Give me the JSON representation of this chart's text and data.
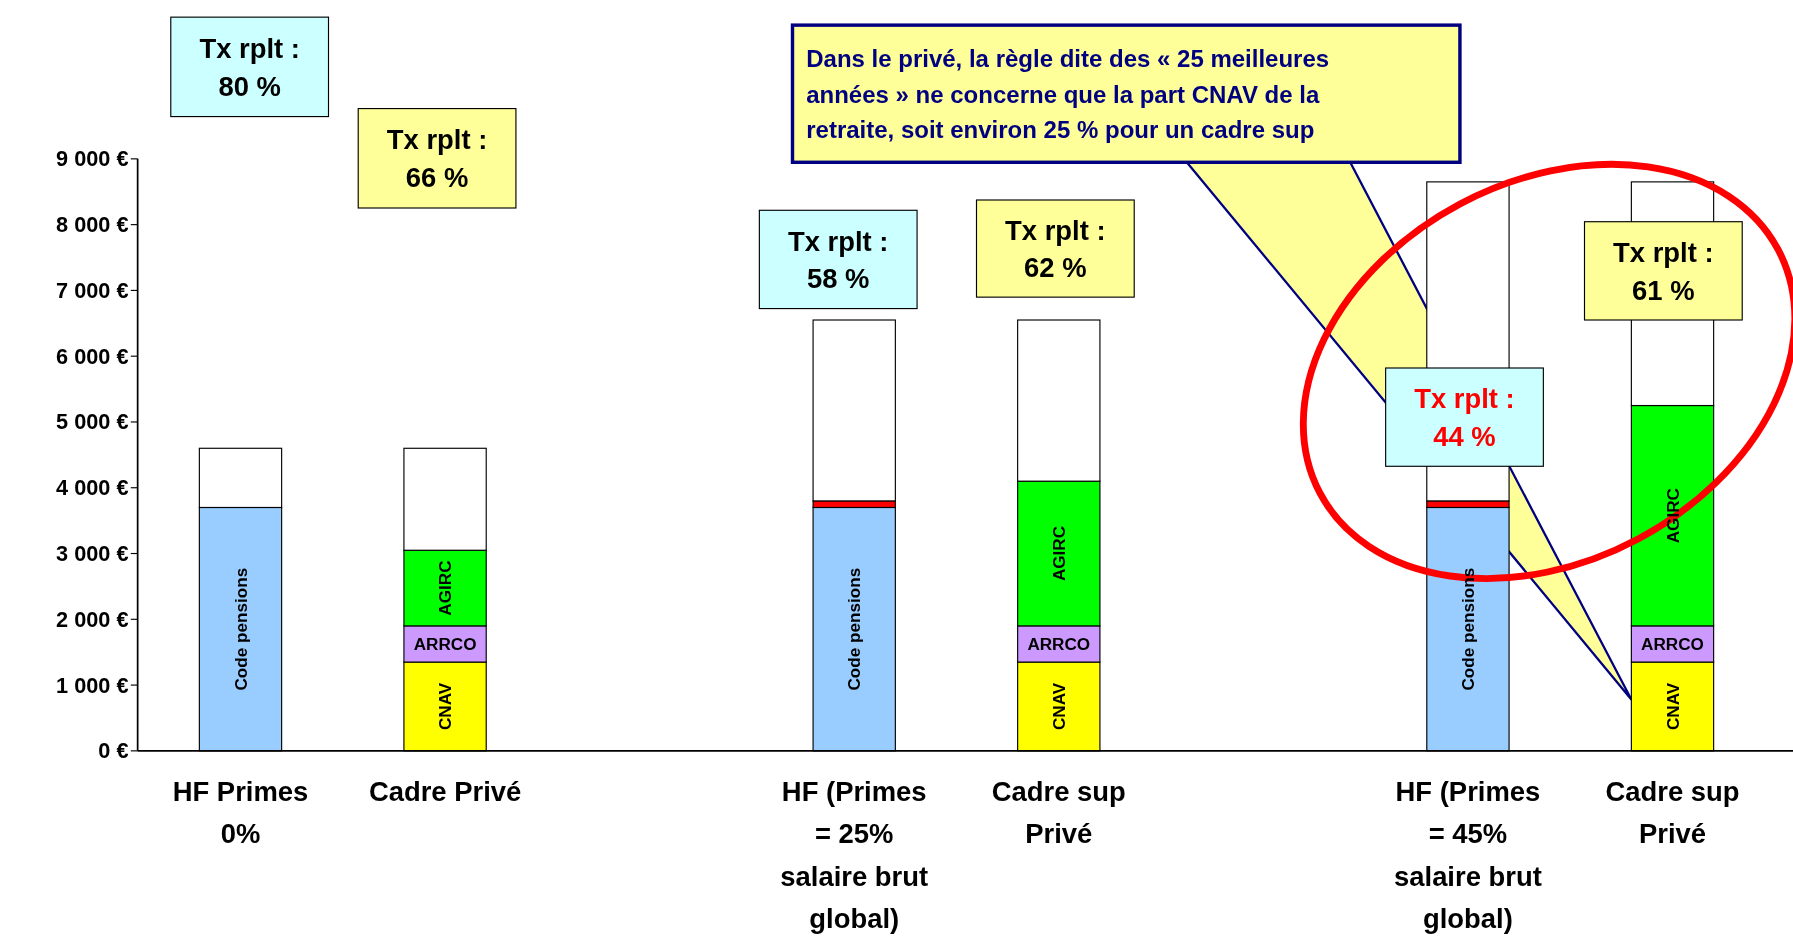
{
  "chart_data": {
    "type": "bar",
    "stacked": true,
    "legend": false,
    "grid": false,
    "categories": [
      "HF Primes\n0%",
      "Cadre Privé",
      null,
      "HF (Primes\n= 25%\nsalaire brut\nglobal)",
      "Cadre sup\nPrivé",
      null,
      "HF (Primes\n= 45%\nsalaire brut\nglobal)",
      "Cadre sup\nPrivé"
    ],
    "series": [
      {
        "name": "Code pensions",
        "color": "#99ccff",
        "values": [
          3700,
          null,
          null,
          3700,
          null,
          null,
          3700,
          null
        ]
      },
      {
        "color": "#ff0000",
        "values": [
          null,
          null,
          null,
          100,
          null,
          null,
          100,
          null
        ]
      },
      {
        "name": "CNAV",
        "color": "#ffff00",
        "values": [
          null,
          1350,
          null,
          null,
          1350,
          null,
          null,
          1350
        ]
      },
      {
        "name": "ARRCO",
        "color": "#cc99ff",
        "values": [
          null,
          550,
          null,
          null,
          550,
          null,
          null,
          550
        ]
      },
      {
        "name": "AGIRC",
        "color": "#00ff00",
        "values": [
          null,
          1150,
          null,
          null,
          2200,
          null,
          null,
          3350
        ]
      },
      {
        "color": "#ffffff",
        "values": [
          900,
          1550,
          null,
          2750,
          2450,
          null,
          4850,
          3400
        ]
      }
    ],
    "ylim": [
      0,
      9000
    ],
    "yticks": [
      {
        "value": 0,
        "label": "0 €"
      },
      {
        "value": 1000,
        "label": "1 000 €"
      },
      {
        "value": 2000,
        "label": "2 000 €"
      },
      {
        "value": 3000,
        "label": "3 000 €"
      },
      {
        "value": 4000,
        "label": "4 000 €"
      },
      {
        "value": 5000,
        "label": "5 000 €"
      },
      {
        "value": 6000,
        "label": "6 000 €"
      },
      {
        "value": 7000,
        "label": "7 000 €"
      },
      {
        "value": 8000,
        "label": "8 000 €"
      },
      {
        "value": 9000,
        "label": "9 000 €"
      }
    ],
    "annotations": [
      "Tx rplt :\n80 %",
      "Tx rplt :\n66 %",
      "Tx rplt :\n58 %",
      "Tx rplt :\n62 %",
      "Tx rplt :\n44 %",
      "Tx rplt :\n61 %",
      "Dans le privé, la règle dite des « 25 meilleures\nannées » ne concerne que la part CNAV de la\nretraite, soit environ 25 % pour un cadre sup"
    ]
  }
}
